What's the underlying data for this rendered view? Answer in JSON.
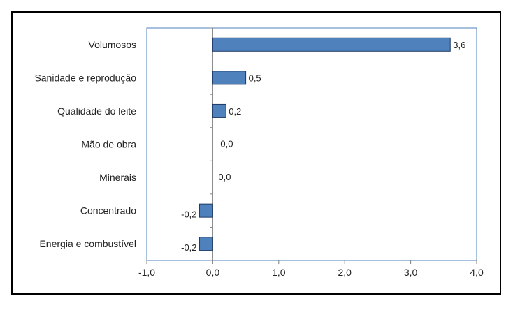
{
  "chart_data": {
    "type": "bar",
    "orientation": "horizontal",
    "title": "",
    "xlabel": "",
    "ylabel": "",
    "categories": [
      "Volumosos",
      "Sanidade e reprodução",
      "Qualidade do leite",
      "Mão de obra",
      "Minerais",
      "Concentrado",
      "Energia e combustível"
    ],
    "values": [
      3.6,
      0.5,
      0.2,
      0.0,
      0.0,
      -0.2,
      -0.2
    ],
    "data_labels": [
      "3,6",
      "0,5",
      "0,2",
      "0,0",
      "0,0",
      "-0,2",
      "-0,2"
    ],
    "xlim": [
      -1.0,
      4.0
    ],
    "x_ticks": [
      -1.0,
      0.0,
      1.0,
      2.0,
      3.0,
      4.0
    ],
    "x_tick_labels": [
      "-1,0",
      "0,0",
      "1,0",
      "2,0",
      "3,0",
      "4,0"
    ],
    "grid": false,
    "legend": "none",
    "colors": {
      "bar_fill": "#4F81BD",
      "bar_stroke": "#1F3864",
      "plot_border": "#4F81BD",
      "axis": "#808080"
    }
  }
}
